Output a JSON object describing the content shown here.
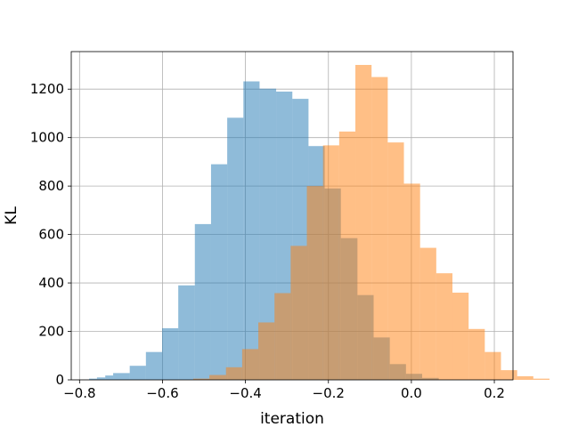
{
  "chart_data": {
    "type": "bar",
    "subtype": "overlaid-histogram",
    "xlabel": "iteration",
    "ylabel": "KL",
    "xlim": [
      -0.82,
      0.245
    ],
    "ylim": [
      0,
      1355
    ],
    "xticks": [
      -0.8,
      -0.6,
      -0.4,
      -0.2,
      0.0,
      0.2
    ],
    "xtick_labels": [
      "−0.8",
      "−0.6",
      "−0.4",
      "−0.2",
      "0.0",
      "0.2"
    ],
    "yticks": [
      0,
      200,
      400,
      600,
      800,
      1000,
      1200
    ],
    "ytick_labels": [
      "0",
      "200",
      "400",
      "600",
      "800",
      "1000",
      "1200"
    ],
    "grid": true,
    "series": [
      {
        "color": "#1f77b4",
        "opacity": 0.5,
        "bins": [
          {
            "x0": -0.777,
            "x1": -0.758,
            "count": 5
          },
          {
            "x0": -0.758,
            "x1": -0.738,
            "count": 10
          },
          {
            "x0": -0.738,
            "x1": -0.719,
            "count": 18
          },
          {
            "x0": -0.719,
            "x1": -0.679,
            "count": 28
          },
          {
            "x0": -0.679,
            "x1": -0.64,
            "count": 58
          },
          {
            "x0": -0.64,
            "x1": -0.601,
            "count": 115
          },
          {
            "x0": -0.601,
            "x1": -0.562,
            "count": 213
          },
          {
            "x0": -0.562,
            "x1": -0.522,
            "count": 390
          },
          {
            "x0": -0.522,
            "x1": -0.483,
            "count": 643
          },
          {
            "x0": -0.483,
            "x1": -0.444,
            "count": 890
          },
          {
            "x0": -0.444,
            "x1": -0.405,
            "count": 1082
          },
          {
            "x0": -0.405,
            "x1": -0.366,
            "count": 1232
          },
          {
            "x0": -0.366,
            "x1": -0.326,
            "count": 1202
          },
          {
            "x0": -0.326,
            "x1": -0.287,
            "count": 1190
          },
          {
            "x0": -0.287,
            "x1": -0.248,
            "count": 1160
          },
          {
            "x0": -0.248,
            "x1": -0.209,
            "count": 965
          },
          {
            "x0": -0.209,
            "x1": -0.17,
            "count": 790
          },
          {
            "x0": -0.17,
            "x1": -0.13,
            "count": 585
          },
          {
            "x0": -0.13,
            "x1": -0.091,
            "count": 350
          },
          {
            "x0": -0.091,
            "x1": -0.052,
            "count": 175
          },
          {
            "x0": -0.052,
            "x1": -0.013,
            "count": 65
          },
          {
            "x0": -0.013,
            "x1": 0.026,
            "count": 25
          },
          {
            "x0": 0.026,
            "x1": 0.066,
            "count": 8
          }
        ]
      },
      {
        "color": "#ff7f0e",
        "opacity": 0.5,
        "bins": [
          {
            "x0": -0.526,
            "x1": -0.487,
            "count": 5
          },
          {
            "x0": -0.487,
            "x1": -0.447,
            "count": 20
          },
          {
            "x0": -0.447,
            "x1": -0.408,
            "count": 52
          },
          {
            "x0": -0.408,
            "x1": -0.369,
            "count": 127
          },
          {
            "x0": -0.369,
            "x1": -0.33,
            "count": 237
          },
          {
            "x0": -0.33,
            "x1": -0.291,
            "count": 358
          },
          {
            "x0": -0.291,
            "x1": -0.252,
            "count": 553
          },
          {
            "x0": -0.252,
            "x1": -0.213,
            "count": 800
          },
          {
            "x0": -0.213,
            "x1": -0.174,
            "count": 968
          },
          {
            "x0": -0.174,
            "x1": -0.135,
            "count": 1025
          },
          {
            "x0": -0.135,
            "x1": -0.096,
            "count": 1300
          },
          {
            "x0": -0.096,
            "x1": -0.057,
            "count": 1250
          },
          {
            "x0": -0.057,
            "x1": -0.018,
            "count": 980
          },
          {
            "x0": -0.018,
            "x1": 0.021,
            "count": 810
          },
          {
            "x0": 0.021,
            "x1": 0.06,
            "count": 545
          },
          {
            "x0": 0.06,
            "x1": 0.099,
            "count": 440
          },
          {
            "x0": 0.099,
            "x1": 0.138,
            "count": 360
          },
          {
            "x0": 0.138,
            "x1": 0.177,
            "count": 210
          },
          {
            "x0": 0.177,
            "x1": 0.216,
            "count": 115
          },
          {
            "x0": 0.216,
            "x1": 0.255,
            "count": 40
          },
          {
            "x0": 0.255,
            "x1": 0.294,
            "count": 15
          },
          {
            "x0": 0.294,
            "x1": 0.333,
            "count": 5
          }
        ]
      }
    ]
  }
}
